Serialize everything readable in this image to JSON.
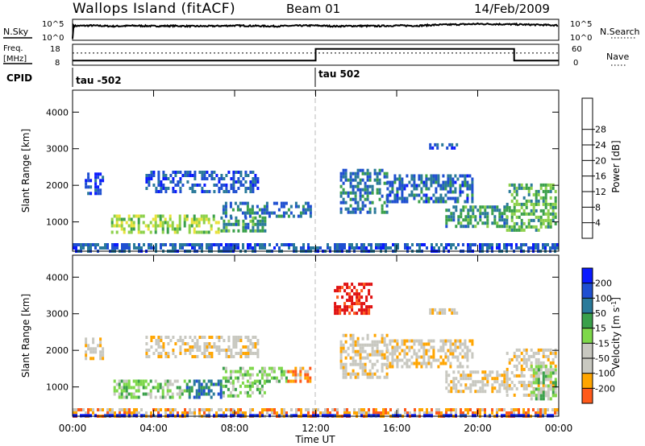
{
  "header": {
    "station": "Wallops Island (fitACF)",
    "beam": "Beam 01",
    "date": "14/Feb/2009"
  },
  "colors": {
    "power": [
      "#0a1aff",
      "#1f4fd1",
      "#2a7a9a",
      "#3aa04a",
      "#8cd04a",
      "#e8e23a",
      "#ffa500",
      "#ff5a1a",
      "#e01010"
    ],
    "velocity": [
      "#e01010",
      "#ff5a1a",
      "#ffa500",
      "#c8c8c0",
      "#c8c8c0",
      "#7ed84a",
      "#3aa04a",
      "#2a7a9a",
      "#1f4fd1",
      "#0a1aff"
    ]
  },
  "chart_data": [
    {
      "type": "line",
      "id": "noise",
      "left_label": "N.Sky",
      "right_label": "N.Search",
      "left_ticks": [
        "10^5",
        "10^0"
      ],
      "right_ticks": [
        "10^5",
        "10^0"
      ],
      "series": [
        {
          "x": [
            0,
            0.05,
            0.1,
            1,
            2,
            3,
            4,
            5,
            6,
            7,
            8,
            9,
            10,
            11,
            12,
            13,
            14,
            15,
            16,
            17,
            18,
            19,
            20,
            21,
            22,
            23,
            24
          ],
          "y": [
            0.0,
            0.75,
            0.72,
            0.74,
            0.7,
            0.73,
            0.71,
            0.72,
            0.7,
            0.71,
            0.74,
            0.72,
            0.7,
            0.73,
            0.74,
            0.7,
            0.72,
            0.71,
            0.74,
            0.73,
            0.78,
            0.8,
            0.83,
            0.82,
            0.8,
            0.78,
            0.75
          ]
        }
      ],
      "xlim": [
        0,
        24
      ]
    },
    {
      "type": "line",
      "id": "frequency",
      "left_label_1": "Freq.",
      "left_label_2": "[MHz]",
      "right_label": "Nave",
      "left_ticks": [
        "18",
        "8"
      ],
      "right_ticks": [
        "60",
        "0"
      ],
      "series": [
        {
          "name": "Freq.",
          "x": [
            0,
            12,
            12,
            21.8,
            21.8,
            24
          ],
          "y": [
            10.2,
            10.2,
            15.8,
            15.8,
            10.2,
            10.2
          ]
        },
        {
          "name": "Nave",
          "x": [
            0,
            24
          ],
          "y": [
            35,
            35
          ]
        }
      ],
      "xlim": [
        0,
        24
      ],
      "ylim": [
        8,
        18
      ]
    },
    {
      "type": "table",
      "id": "cpid",
      "label": "CPID",
      "segments": [
        {
          "start": 0,
          "text": "tau -502"
        },
        {
          "start": 12,
          "text": "tau 502"
        }
      ]
    },
    {
      "type": "heatmap",
      "id": "power",
      "ylabel": "Slant Range [km]",
      "yticks": [
        1000,
        2000,
        3000,
        4000
      ],
      "ylim": [
        200,
        4600
      ],
      "xlim": [
        0,
        24
      ],
      "colorbar_label": "Power [dB]",
      "colorbar_ticks": [
        4,
        8,
        12,
        16,
        20,
        24,
        28
      ],
      "features": [
        {
          "t0": 1.9,
          "t1": 7.3,
          "r0": 700,
          "r1": 1200,
          "level": 4.2
        },
        {
          "t0": 7.3,
          "t1": 9.6,
          "r0": 700,
          "r1": 1150,
          "level": 2.5
        },
        {
          "t0": 7.4,
          "t1": 11.8,
          "r0": 1150,
          "r1": 1550,
          "level": 1.8
        },
        {
          "t0": 3.6,
          "t1": 9.2,
          "r0": 1750,
          "r1": 2400,
          "level": 1.2
        },
        {
          "t0": 0.6,
          "t1": 1.6,
          "r0": 1700,
          "r1": 2350,
          "level": 1.0
        },
        {
          "t0": 13.2,
          "t1": 15.6,
          "r0": 1200,
          "r1": 2450,
          "level": 1.8
        },
        {
          "t0": 15.5,
          "t1": 19.8,
          "r0": 1550,
          "r1": 2300,
          "level": 1.6
        },
        {
          "t0": 18.4,
          "t1": 21.5,
          "r0": 850,
          "r1": 1450,
          "level": 2.6
        },
        {
          "t0": 21.4,
          "t1": 23.9,
          "r0": 700,
          "r1": 2050,
          "level": 3.3
        },
        {
          "t0": 17.6,
          "t1": 19.0,
          "r0": 2950,
          "r1": 3150,
          "level": 1.0
        },
        {
          "t0": 0.0,
          "t1": 24.0,
          "r0": 200,
          "r1": 420,
          "level": 1.3
        }
      ]
    },
    {
      "type": "heatmap",
      "id": "velocity",
      "ylabel": "Slant Range [km]",
      "xlabel": "Time UT",
      "xticks": [
        "00:00",
        "04:00",
        "08:00",
        "12:00",
        "16:00",
        "20:00",
        "00:00"
      ],
      "yticks": [
        1000,
        2000,
        3000,
        4000
      ],
      "ylim": [
        200,
        4600
      ],
      "xlim": [
        0,
        24
      ],
      "colorbar_label": "Velocity [m s^-1]",
      "colorbar_ticks": [
        200,
        100,
        50,
        15,
        -15,
        -50,
        -100,
        -200
      ],
      "features": [
        {
          "t0": 1.9,
          "t1": 5.6,
          "r0": 700,
          "r1": 1200,
          "level": 5
        },
        {
          "t0": 5.6,
          "t1": 7.4,
          "r0": 700,
          "r1": 1200,
          "level": 7
        },
        {
          "t0": 7.4,
          "t1": 9.6,
          "r0": 700,
          "r1": 1150,
          "level": 5
        },
        {
          "t0": 7.4,
          "t1": 10.6,
          "r0": 1150,
          "r1": 1550,
          "level": 5
        },
        {
          "t0": 10.6,
          "t1": 11.8,
          "r0": 1150,
          "r1": 1550,
          "level": 2
        },
        {
          "t0": 3.6,
          "t1": 9.2,
          "r0": 1750,
          "r1": 2400,
          "level": 3
        },
        {
          "t0": 0.6,
          "t1": 1.6,
          "r0": 1700,
          "r1": 2350,
          "level": 3
        },
        {
          "t0": 13.2,
          "t1": 15.6,
          "r0": 1200,
          "r1": 2450,
          "level": 3
        },
        {
          "t0": 15.5,
          "t1": 19.8,
          "r0": 1550,
          "r1": 2300,
          "level": 3
        },
        {
          "t0": 18.4,
          "t1": 21.5,
          "r0": 850,
          "r1": 1450,
          "level": 3
        },
        {
          "t0": 21.4,
          "t1": 23.9,
          "r0": 700,
          "r1": 2050,
          "level": 3
        },
        {
          "t0": 22.6,
          "t1": 23.9,
          "r0": 600,
          "r1": 1600,
          "level": 5
        },
        {
          "t0": 12.9,
          "t1": 14.8,
          "r0": 2950,
          "r1": 3850,
          "level": 0
        },
        {
          "t0": 17.6,
          "t1": 19.0,
          "r0": 2950,
          "r1": 3150,
          "level": 3
        },
        {
          "t0": 0.0,
          "t1": 24.0,
          "r0": 200,
          "r1": 420,
          "level": 2
        },
        {
          "t0": 0.0,
          "t1": 24.0,
          "r0": 200,
          "r1": 260,
          "level": 9
        }
      ]
    }
  ]
}
